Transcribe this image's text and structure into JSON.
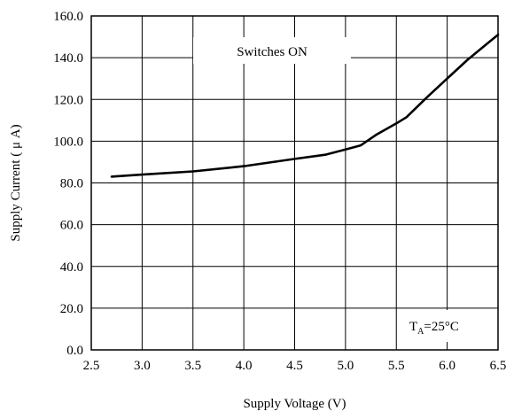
{
  "chart_data": {
    "type": "line",
    "xlabel": "Supply Voltage (V)",
    "ylabel": "Supply Current ( μ A)",
    "xlim": [
      2.5,
      6.5
    ],
    "ylim": [
      0,
      160
    ],
    "x_ticks": [
      "2.5",
      "3.0",
      "3.5",
      "4.0",
      "4.5",
      "5.0",
      "5.5",
      "6.0",
      "6.5"
    ],
    "y_ticks": [
      "0.0",
      "20.0",
      "40.0",
      "60.0",
      "80.0",
      "100.0",
      "120.0",
      "140.0",
      "160.0"
    ],
    "grid": true,
    "series": [
      {
        "x": [
          2.7,
          3.0,
          3.5,
          4.0,
          4.5,
          4.8,
          5.0,
          5.15,
          5.3,
          5.5,
          5.6,
          5.8,
          6.0,
          6.2,
          6.4,
          6.5
        ],
        "y": [
          83,
          84,
          85.5,
          88,
          91.5,
          93.5,
          96,
          98,
          103,
          108.5,
          111.5,
          121,
          130,
          139,
          147,
          151
        ],
        "color": "#000000"
      }
    ],
    "annotations": [
      {
        "text": "Switches ON"
      },
      {
        "text_main": "T",
        "text_sub": "A",
        "text_rest": "=25°C"
      }
    ]
  }
}
